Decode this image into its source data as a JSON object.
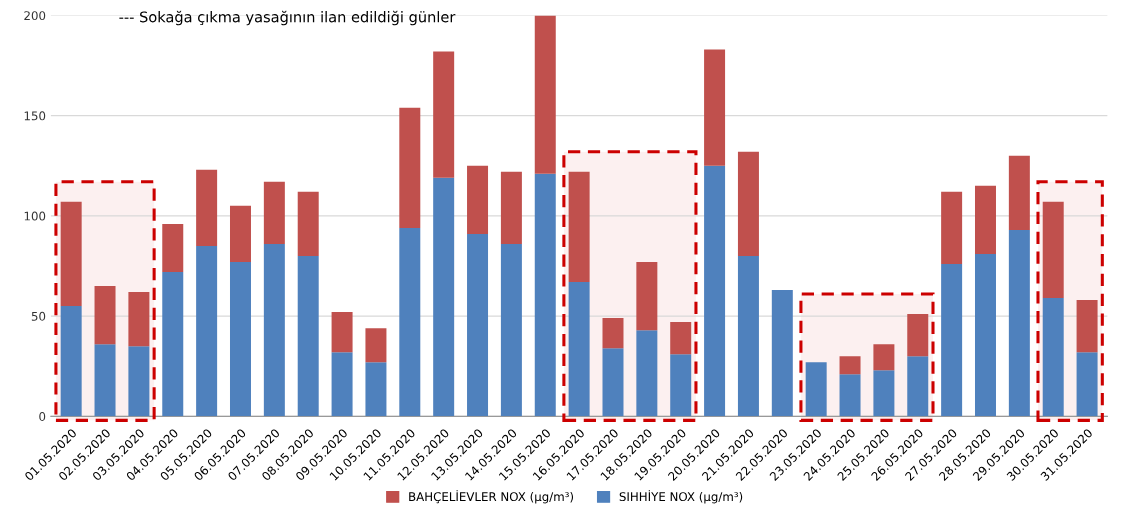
{
  "chart_data": {
    "type": "bar",
    "stacked": true,
    "categories": [
      "01.05.2020",
      "02.05.2020",
      "03.05.2020",
      "04.05.2020",
      "05.05.2020",
      "06.05.2020",
      "07.05.2020",
      "08.05.2020",
      "09.05.2020",
      "10.05.2020",
      "11.05.2020",
      "12.05.2020",
      "13.05.2020",
      "14.05.2020",
      "15.05.2020",
      "16.05.2020",
      "17.05.2020",
      "18.05.2020",
      "19.05.2020",
      "20.05.2020",
      "21.05.2020",
      "22.05.2020",
      "23.05.2020",
      "24.05.2020",
      "25.05.2020",
      "26.05.2020",
      "27.05.2020",
      "28.05.2020",
      "29.05.2020",
      "30.05.2020",
      "31.05.2020"
    ],
    "series": [
      {
        "name": "SIHHİYE NOX (µg/m³)",
        "color": "#4f81bd",
        "values": [
          55,
          36,
          35,
          72,
          85,
          77,
          86,
          80,
          32,
          27,
          94,
          119,
          91,
          86,
          121,
          67,
          34,
          43,
          31,
          125,
          80,
          63,
          27,
          21,
          23,
          30,
          76,
          81,
          93,
          59,
          32
        ]
      },
      {
        "name": "BAHÇELİEVLER NOX (µg/m³)",
        "color": "#c0504d",
        "values": [
          52,
          29,
          27,
          24,
          38,
          28,
          31,
          32,
          20,
          17,
          60,
          63,
          34,
          36,
          79,
          55,
          15,
          34,
          16,
          58,
          52,
          0,
          0,
          9,
          13,
          21,
          36,
          34,
          37,
          48,
          26
        ]
      }
    ],
    "ylim": [
      0,
      200
    ],
    "yticks": [
      0,
      50,
      100,
      150,
      200
    ],
    "grid": "y",
    "legend": "bottom",
    "annotations": [
      "--- Sokağa çıkma yasağının ilan edildiği günler"
    ],
    "bands": [
      {
        "axis": "x",
        "from": "01.05.2020",
        "to": "03.05.2020",
        "color": "#cc0000"
      },
      {
        "axis": "x",
        "from": "16.05.2020",
        "to": "19.05.2020",
        "color": "#cc0000"
      },
      {
        "axis": "x",
        "from": "23.05.2020",
        "to": "26.05.2020",
        "color": "#cc0000"
      },
      {
        "axis": "x",
        "from": "30.05.2020",
        "to": "31.05.2020",
        "color": "#cc0000"
      }
    ]
  }
}
